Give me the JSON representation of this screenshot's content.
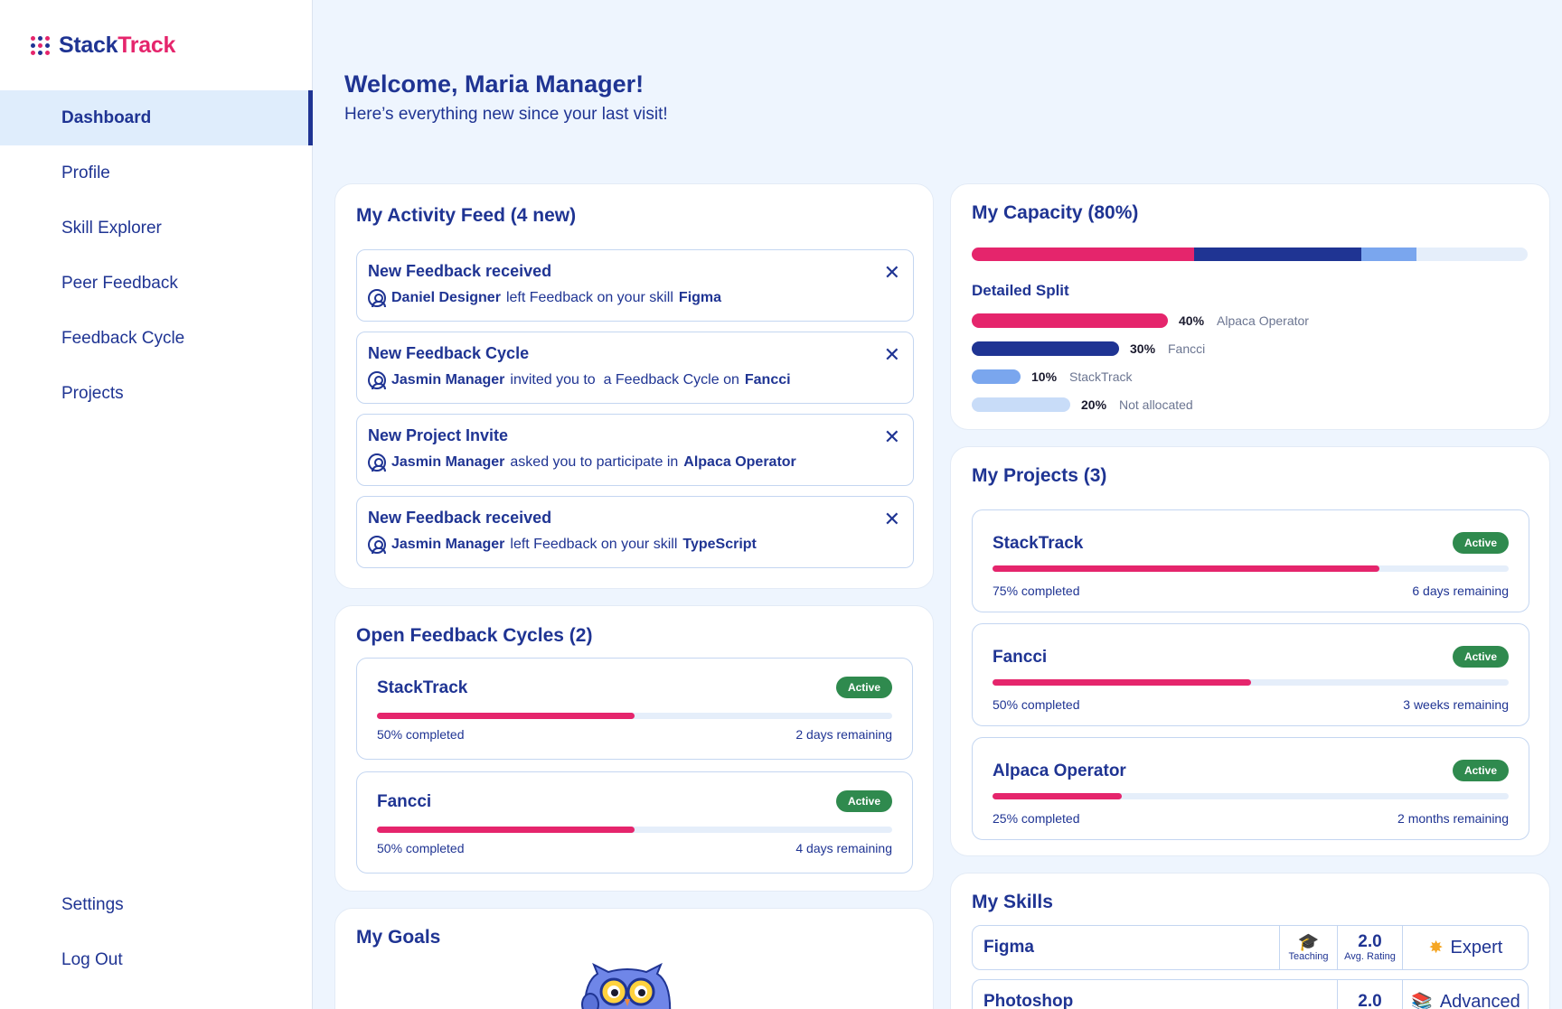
{
  "app": {
    "name_a": "Stack",
    "name_b": "Track"
  },
  "colors": {
    "primary": "#1f3493",
    "accent": "#e5256c",
    "active_badge": "#2f8a4e",
    "background": "#eef5fe"
  },
  "sidebar": {
    "items": [
      {
        "label": "Dashboard",
        "active": true
      },
      {
        "label": "Profile"
      },
      {
        "label": "Skill Explorer"
      },
      {
        "label": "Peer Feedback"
      },
      {
        "label": "Feedback Cycle"
      },
      {
        "label": "Projects"
      }
    ],
    "bottom": [
      {
        "label": "Settings"
      },
      {
        "label": "Log Out"
      }
    ]
  },
  "header": {
    "title": "Welcome, Maria Manager!",
    "subtitle": "Here’s everything new since your last visit!"
  },
  "activity": {
    "title": "My Activity Feed (4 new)",
    "items": [
      {
        "title": "New Feedback received",
        "user": "Daniel Designer",
        "text": "left Feedback on your skill",
        "target": "Figma"
      },
      {
        "title": "New Feedback Cycle",
        "user": "Jasmin Manager",
        "text": "invited you to  a Feedback Cycle on",
        "target": "Fancci"
      },
      {
        "title": "New Project Invite",
        "user": "Jasmin Manager",
        "text": "asked you to participate in",
        "target": "Alpaca Operator"
      },
      {
        "title": "New Feedback received",
        "user": "Jasmin Manager",
        "text": "left Feedback on your skill",
        "target": "TypeScript"
      }
    ]
  },
  "cycles": {
    "title": "Open Feedback Cycles (2)",
    "items": [
      {
        "name": "StackTrack",
        "status": "Active",
        "progress": 0.5,
        "completed": "50% completed",
        "remaining": "2 days remaining"
      },
      {
        "name": "Fancci",
        "status": "Active",
        "progress": 0.5,
        "completed": "50% completed",
        "remaining": "4 days remaining"
      }
    ]
  },
  "goals": {
    "title": "My Goals"
  },
  "capacity": {
    "title": "My Capacity (80%)",
    "split_title": "Detailed Split",
    "segments": [
      {
        "pct": 40,
        "pct_label": "40%",
        "label": "Alpaca Operator",
        "color": "#e5256c"
      },
      {
        "pct": 30,
        "pct_label": "30%",
        "label": "Fancci",
        "color": "#1f3493"
      },
      {
        "pct": 10,
        "pct_label": "10%",
        "label": "StackTrack",
        "color": "#7aa6ee"
      },
      {
        "pct": 20,
        "pct_label": "20%",
        "label": "Not allocated",
        "color": "#c8dcf8"
      }
    ]
  },
  "projects": {
    "title": "My Projects (3)",
    "items": [
      {
        "name": "StackTrack",
        "status": "Active",
        "progress": 0.75,
        "completed": "75% completed",
        "remaining": "6 days remaining"
      },
      {
        "name": "Fancci",
        "status": "Active",
        "progress": 0.5,
        "completed": "50% completed",
        "remaining": "3 weeks remaining"
      },
      {
        "name": "Alpaca Operator",
        "status": "Active",
        "progress": 0.25,
        "completed": "25% completed",
        "remaining": "2 months remaining"
      }
    ]
  },
  "skills": {
    "title": "My Skills",
    "items": [
      {
        "name": "Figma",
        "teaching": "Teaching",
        "rating": "2.0",
        "rating_label": "Avg. Rating",
        "level": "Expert",
        "level_icon": "star-badge-icon"
      },
      {
        "name": "Photoshop",
        "rating": "2.0",
        "level": "Advanced",
        "level_icon": "books-icon"
      }
    ]
  }
}
